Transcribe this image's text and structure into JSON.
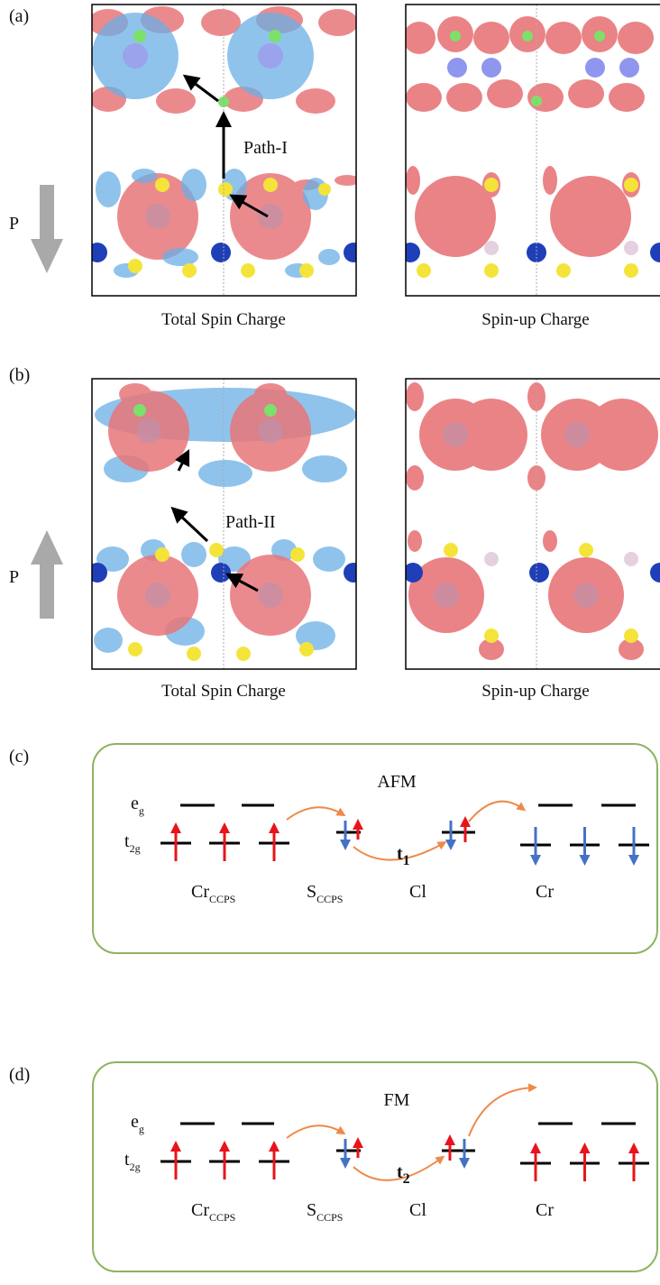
{
  "panels": [
    {
      "label": "(a)",
      "path_label": "Path-I",
      "polarization": "P",
      "captions": [
        "Total Spin Charge",
        "Spin-up Charge"
      ]
    },
    {
      "label": "(b)",
      "path_label": "Path-II",
      "polarization": "P",
      "captions": [
        "Total Spin Charge",
        "Spin-up Charge"
      ]
    }
  ],
  "diagrams": [
    {
      "label": "(c)",
      "title": "AFM",
      "hopping": {
        "base": "t",
        "sub": "1"
      },
      "levels": [
        {
          "base": "e",
          "sub": "g"
        },
        {
          "base": "t",
          "sub": "2g"
        }
      ],
      "species": [
        {
          "base": "Cr",
          "sub": "CCPS"
        },
        {
          "base": "S",
          "sub": "CCPS"
        },
        {
          "base": "Cl"
        },
        {
          "base": "Cr"
        }
      ]
    },
    {
      "label": "(d)",
      "title": "FM",
      "hopping": {
        "base": "t",
        "sub": "2"
      },
      "levels": [
        {
          "base": "e",
          "sub": "g"
        },
        {
          "base": "t",
          "sub": "2g"
        }
      ],
      "species": [
        {
          "base": "Cr",
          "sub": "CCPS"
        },
        {
          "base": "S",
          "sub": "CCPS"
        },
        {
          "base": "Cl"
        },
        {
          "base": "Cr"
        }
      ]
    }
  ]
}
